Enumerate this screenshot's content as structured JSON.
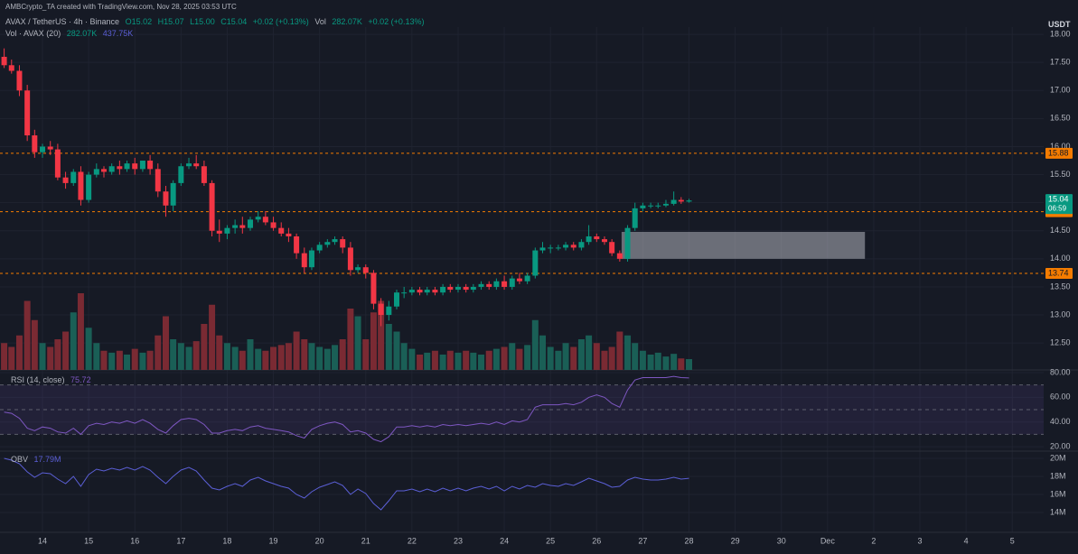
{
  "header": "AMBCrypto_TA created with TradingView.com, Nov 28, 2025 03:53 UTC",
  "chart_data": [
    {
      "type": "candlestick",
      "title": "AVAX / TetherUS · 4h · Binance",
      "legend_values": [
        "O15.02",
        "H15.07",
        "L15.00",
        "C15.04",
        "+0.02 (+0.13%)",
        "Vol",
        "282.07K",
        "+0.02 (+0.13%)"
      ],
      "volume_title": "Vol · AVAX (20)",
      "volume_legend": [
        "282.07K",
        "437.75K"
      ],
      "currency": "USDT",
      "x": [
        13.17,
        13.33,
        13.5,
        13.67,
        13.83,
        14,
        14.17,
        14.33,
        14.5,
        14.67,
        14.83,
        15,
        15.17,
        15.33,
        15.5,
        15.67,
        15.83,
        16,
        16.17,
        16.33,
        16.5,
        16.67,
        16.83,
        17,
        17.17,
        17.33,
        17.5,
        17.67,
        17.83,
        18,
        18.17,
        18.33,
        18.5,
        18.67,
        18.83,
        19,
        19.17,
        19.33,
        19.5,
        19.67,
        19.83,
        20,
        20.17,
        20.33,
        20.5,
        20.67,
        20.83,
        21,
        21.17,
        21.33,
        21.5,
        21.67,
        21.83,
        22,
        22.17,
        22.33,
        22.5,
        22.67,
        22.83,
        23,
        23.17,
        23.33,
        23.5,
        23.67,
        23.83,
        24,
        24.17,
        24.33,
        24.5,
        24.67,
        24.83,
        25,
        25.17,
        25.33,
        25.5,
        25.67,
        25.83,
        26,
        26.17,
        26.33,
        26.5,
        26.67,
        26.83,
        27,
        27.17,
        27.33,
        27.5,
        27.67,
        27.83,
        28
      ],
      "open": [
        17.6,
        17.45,
        17.35,
        17.0,
        16.2,
        15.9,
        16.0,
        15.95,
        15.45,
        15.35,
        15.55,
        15.05,
        15.5,
        15.6,
        15.55,
        15.65,
        15.6,
        15.7,
        15.6,
        15.75,
        15.6,
        15.2,
        14.95,
        15.35,
        15.65,
        15.7,
        15.65,
        15.35,
        14.5,
        14.45,
        14.55,
        14.6,
        14.55,
        14.7,
        14.75,
        14.65,
        14.55,
        14.45,
        14.4,
        14.1,
        13.85,
        14.15,
        14.25,
        14.3,
        14.35,
        14.2,
        13.8,
        13.85,
        13.75,
        13.2,
        13.0,
        13.15,
        13.4,
        13.4,
        13.45,
        13.4,
        13.45,
        13.4,
        13.5,
        13.45,
        13.5,
        13.45,
        13.5,
        13.55,
        13.5,
        13.6,
        13.5,
        13.65,
        13.6,
        13.7,
        14.15,
        14.2,
        14.2,
        14.2,
        14.25,
        14.2,
        14.3,
        14.4,
        14.35,
        14.3,
        14.1,
        14.0,
        14.55,
        14.9,
        14.95,
        14.95,
        14.95,
        14.98,
        15.05,
        15.02
      ],
      "high": [
        17.75,
        17.55,
        17.45,
        17.1,
        16.3,
        16.05,
        16.1,
        16.05,
        15.55,
        15.6,
        15.65,
        15.55,
        15.7,
        15.65,
        15.7,
        15.75,
        15.75,
        15.8,
        15.75,
        15.85,
        15.7,
        15.3,
        15.4,
        15.7,
        15.8,
        15.85,
        15.75,
        15.4,
        14.7,
        14.6,
        14.7,
        14.75,
        14.75,
        14.85,
        14.85,
        14.75,
        14.65,
        14.55,
        14.45,
        14.2,
        14.2,
        14.3,
        14.35,
        14.4,
        14.4,
        14.3,
        13.9,
        13.9,
        13.8,
        13.3,
        13.25,
        13.45,
        13.5,
        13.5,
        13.5,
        13.5,
        13.5,
        13.55,
        13.55,
        13.55,
        13.55,
        13.55,
        13.6,
        13.6,
        13.65,
        13.7,
        13.7,
        13.75,
        13.75,
        14.2,
        14.3,
        14.25,
        14.25,
        14.3,
        14.3,
        14.35,
        14.6,
        14.45,
        14.4,
        14.35,
        14.15,
        14.6,
        15.0,
        15.0,
        15.0,
        15.0,
        15.05,
        15.2,
        15.1,
        15.07
      ],
      "low": [
        17.4,
        17.3,
        16.9,
        16.1,
        15.8,
        15.8,
        15.85,
        15.4,
        15.25,
        15.3,
        14.95,
        15.0,
        15.45,
        15.45,
        15.5,
        15.5,
        15.55,
        15.5,
        15.55,
        15.5,
        15.1,
        14.75,
        14.85,
        15.3,
        15.6,
        15.6,
        15.3,
        14.4,
        14.3,
        14.35,
        14.45,
        14.45,
        14.5,
        14.65,
        14.6,
        14.5,
        14.4,
        14.3,
        14.0,
        13.75,
        13.8,
        14.1,
        14.2,
        14.25,
        14.1,
        13.7,
        13.75,
        13.65,
        13.1,
        12.8,
        12.9,
        13.1,
        13.3,
        13.35,
        13.35,
        13.35,
        13.35,
        13.35,
        13.4,
        13.4,
        13.4,
        13.4,
        13.45,
        13.45,
        13.45,
        13.45,
        13.45,
        13.55,
        13.55,
        13.65,
        14.1,
        14.1,
        14.15,
        14.15,
        14.15,
        14.15,
        14.25,
        14.3,
        14.25,
        14.05,
        13.95,
        13.95,
        14.5,
        14.85,
        14.9,
        14.9,
        14.92,
        14.95,
        14.98,
        15.0
      ],
      "close": [
        17.45,
        17.35,
        17.0,
        16.2,
        15.9,
        16.0,
        15.95,
        15.45,
        15.35,
        15.55,
        15.05,
        15.5,
        15.6,
        15.55,
        15.65,
        15.6,
        15.7,
        15.6,
        15.75,
        15.6,
        15.2,
        14.95,
        15.35,
        15.65,
        15.7,
        15.65,
        15.35,
        14.5,
        14.45,
        14.55,
        14.6,
        14.55,
        14.7,
        14.75,
        14.65,
        14.55,
        14.45,
        14.4,
        14.1,
        13.85,
        14.15,
        14.25,
        14.3,
        14.35,
        14.2,
        13.8,
        13.85,
        13.75,
        13.2,
        13.0,
        13.15,
        13.4,
        13.4,
        13.45,
        13.4,
        13.45,
        13.4,
        13.5,
        13.45,
        13.5,
        13.45,
        13.5,
        13.55,
        13.5,
        13.6,
        13.5,
        13.65,
        13.6,
        13.7,
        14.15,
        14.2,
        14.2,
        14.2,
        14.25,
        14.2,
        14.3,
        14.4,
        14.35,
        14.3,
        14.1,
        14.0,
        14.55,
        14.9,
        14.95,
        14.95,
        14.95,
        14.98,
        15.05,
        15.02,
        15.04
      ],
      "volume": [
        700000,
        600000,
        900000,
        1800000,
        1300000,
        700000,
        600000,
        800000,
        1000000,
        1500000,
        2000000,
        1100000,
        700000,
        500000,
        450000,
        500000,
        400000,
        550000,
        450000,
        500000,
        900000,
        1400000,
        800000,
        700000,
        600000,
        750000,
        1200000,
        1700000,
        900000,
        700000,
        600000,
        500000,
        800000,
        550000,
        500000,
        600000,
        650000,
        700000,
        1000000,
        800000,
        700000,
        600000,
        550000,
        650000,
        800000,
        1600000,
        1400000,
        800000,
        1500000,
        1800000,
        1200000,
        1000000,
        700000,
        550000,
        400000,
        450000,
        500000,
        400000,
        500000,
        450000,
        500000,
        450000,
        400000,
        500000,
        550000,
        600000,
        700000,
        550000,
        650000,
        1300000,
        900000,
        600000,
        500000,
        700000,
        600000,
        800000,
        900000,
        700000,
        500000,
        600000,
        1000000,
        900000,
        700000,
        500000,
        400000,
        450000,
        350000,
        420000,
        300000,
        282070
      ],
      "colors": {
        "up": "#089981",
        "down": "#f23645",
        "volume_up": "#1a5f56",
        "volume_down": "#7a2a33"
      },
      "ylim": [
        12.02,
        18.13
      ],
      "yticks": [
        {
          "value": 12.5,
          "label": "12.50"
        },
        {
          "value": 13,
          "label": "13.00"
        },
        {
          "value": 13.5,
          "label": "13.50"
        },
        {
          "value": 14,
          "label": "14.00"
        },
        {
          "value": 14.5,
          "label": "14.50"
        },
        {
          "value": 15,
          "label": "15.00"
        },
        {
          "value": 15.5,
          "label": "15.50"
        },
        {
          "value": 16,
          "label": "16.00"
        },
        {
          "value": 16.5,
          "label": "16.50"
        },
        {
          "value": 17,
          "label": "17.00"
        },
        {
          "value": 17.5,
          "label": "17.50"
        },
        {
          "value": 18,
          "label": "18.00"
        }
      ],
      "xlim": [
        13.08,
        35.68
      ],
      "xticks": [
        14,
        15,
        16,
        17,
        18,
        19,
        20,
        21,
        22,
        23,
        24,
        25,
        26,
        27,
        28,
        29,
        30,
        {
          "value": 31,
          "label": "Dec"
        },
        {
          "value": 32,
          "label": "2"
        },
        {
          "value": 33,
          "label": "3"
        },
        {
          "value": 34,
          "label": "4"
        },
        {
          "value": 35,
          "label": "5"
        }
      ],
      "levels": [
        15.88,
        14.84,
        13.74
      ],
      "level_color": "#f57c00",
      "zone": {
        "x": [
          26.54,
          31.81
        ],
        "y": [
          14.0,
          14.48
        ]
      },
      "countdown": "06:59"
    },
    {
      "type": "line",
      "title": "RSI (14, close)",
      "color": "#7e57c2",
      "values": [
        48,
        47,
        43,
        35,
        33,
        36,
        35,
        32,
        31,
        35,
        30,
        37,
        39,
        38,
        40,
        39,
        41,
        39,
        42,
        39,
        34,
        31,
        37,
        42,
        43,
        42,
        38,
        31,
        31,
        33,
        34,
        33,
        36,
        37,
        35,
        34,
        33,
        32,
        29,
        27,
        34,
        37,
        39,
        40,
        38,
        32,
        33,
        31,
        26,
        24,
        28,
        36,
        36,
        37,
        36,
        37,
        36,
        38,
        37,
        38,
        37,
        38,
        39,
        38,
        40,
        38,
        41,
        40,
        42,
        52,
        54,
        54,
        54,
        55,
        54,
        56,
        60,
        62,
        60,
        55,
        52,
        66,
        74,
        76,
        76,
        76,
        76,
        77,
        76,
        75.72
      ],
      "ylim": [
        16.4,
        82.2
      ],
      "yticks": [
        {
          "value": 20,
          "label": "20.00"
        },
        {
          "value": 40,
          "label": "40.00"
        },
        {
          "value": 60,
          "label": "60.00"
        },
        {
          "value": 80,
          "label": "80.00"
        }
      ],
      "levels": [
        70,
        50,
        30
      ]
    },
    {
      "type": "line",
      "title": "OBV",
      "legend_value": "17.79M",
      "color": "#5b5fd6",
      "values": [
        20000000,
        19800000,
        19400000,
        18500000,
        17900000,
        18400000,
        18300000,
        17700000,
        17200000,
        18000000,
        16900000,
        18200000,
        18800000,
        18600000,
        18900000,
        18700000,
        19000000,
        18700000,
        19100000,
        18700000,
        17900000,
        17200000,
        18000000,
        18700000,
        19000000,
        18600000,
        17600000,
        16700000,
        16500000,
        16900000,
        17200000,
        16900000,
        17600000,
        17900000,
        17500000,
        17200000,
        16900000,
        16700000,
        16000000,
        15600000,
        16300000,
        16800000,
        17100000,
        17400000,
        17000000,
        16000000,
        16600000,
        16100000,
        15000000,
        14300000,
        15300000,
        16400000,
        16400000,
        16600000,
        16300000,
        16600000,
        16300000,
        16700000,
        16400000,
        16700000,
        16400000,
        16700000,
        16900000,
        16600000,
        16900000,
        16400000,
        16900000,
        16600000,
        17000000,
        16800000,
        17200000,
        17000000,
        16900000,
        17200000,
        17000000,
        17400000,
        17800000,
        17500000,
        17200000,
        16800000,
        16900000,
        17600000,
        17900000,
        17700000,
        17600000,
        17600000,
        17700000,
        17900000,
        17700000,
        17790000
      ],
      "ylim": [
        11800000,
        20800000
      ],
      "yticks": [
        {
          "value": 14000000,
          "label": "14M"
        },
        {
          "value": 16000000,
          "label": "16M"
        },
        {
          "value": 18000000,
          "label": "18M"
        },
        {
          "value": 20000000,
          "label": "20M"
        }
      ]
    }
  ]
}
